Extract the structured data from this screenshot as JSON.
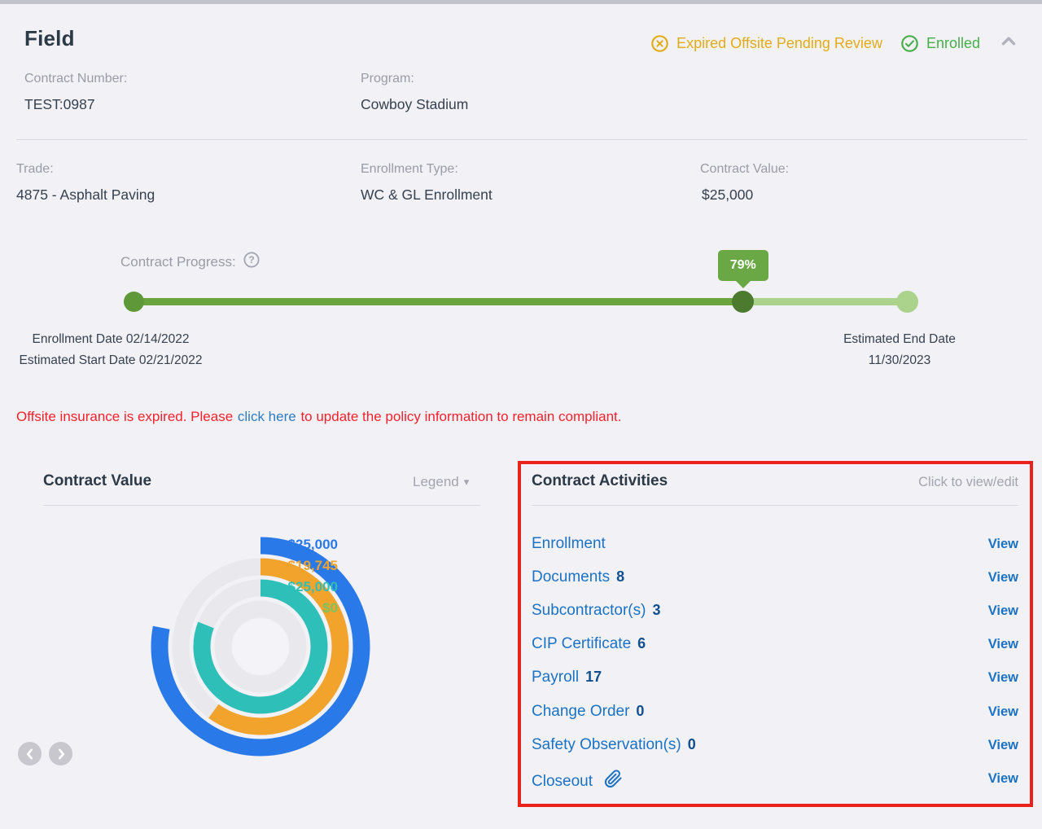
{
  "header": {
    "title": "Field",
    "badges": [
      {
        "label": "Expired Offsite Pending Review",
        "color": "#e3ac16",
        "icon": "circle-x-icon"
      },
      {
        "label": "Enrolled",
        "color": "#46ae4a",
        "icon": "circle-check-icon"
      }
    ]
  },
  "fields": {
    "contract_number_label": "Contract Number:",
    "contract_number": "TEST:0987",
    "program_label": "Program:",
    "program": "Cowboy Stadium",
    "trade_label": "Trade:",
    "trade": "4875 - Asphalt Paving",
    "enrollment_type_label": "Enrollment Type:",
    "enrollment_type": "WC & GL Enrollment",
    "contract_value_label": "Contract Value:",
    "contract_value": "$25,000"
  },
  "progress": {
    "label": "Contract Progress:",
    "help_glyph": "?",
    "percent": 79,
    "tooltip": "79%",
    "dates_left_line1": "Enrollment Date 02/14/2022",
    "dates_left_line2": "Estimated Start Date 02/21/2022",
    "dates_right_line1": "Estimated End Date",
    "dates_right_line2": "11/30/2023"
  },
  "alert": {
    "text_before": "Offsite insurance is expired. Please",
    "link_text": "click here",
    "text_after": "to update the policy information to remain compliant."
  },
  "value_panel": {
    "title": "Contract Value",
    "legend_label": "Legend",
    "legend_caret": "▾"
  },
  "chart_data": {
    "type": "radial-progress-rings",
    "title": "Contract Value",
    "legend_position": "collapsed-dropdown",
    "track_color": "#e8e8ed",
    "rings": [
      {
        "name": "ring-1-outer",
        "label": "$25,000",
        "value": 25000,
        "color": "#2979e8",
        "percent": 78,
        "show_track": false
      },
      {
        "name": "ring-2",
        "label": "$19,745",
        "value": 19745,
        "color": "#f2a32c",
        "percent": 60,
        "show_track": true
      },
      {
        "name": "ring-3",
        "label": "$25,000",
        "value": 25000,
        "color": "#2fbfb9",
        "percent": 81,
        "show_track": true
      },
      {
        "name": "ring-4-inner",
        "label": "$0",
        "value": 0,
        "color": "#7cc262",
        "percent": 0,
        "show_track": true
      }
    ]
  },
  "activities": {
    "title": "Contract Activities",
    "hint": "Click to view/edit",
    "view_label": "View",
    "items": [
      {
        "label": "Enrollment",
        "count": ""
      },
      {
        "label": "Documents",
        "count": "8"
      },
      {
        "label": "Subcontractor(s)",
        "count": "3"
      },
      {
        "label": "CIP Certificate",
        "count": "6"
      },
      {
        "label": "Payroll",
        "count": "17"
      },
      {
        "label": "Change Order",
        "count": "0"
      },
      {
        "label": "Safety Observation(s)",
        "count": "0"
      },
      {
        "label": "Closeout",
        "count": "",
        "icon": "paperclip-icon"
      }
    ]
  }
}
